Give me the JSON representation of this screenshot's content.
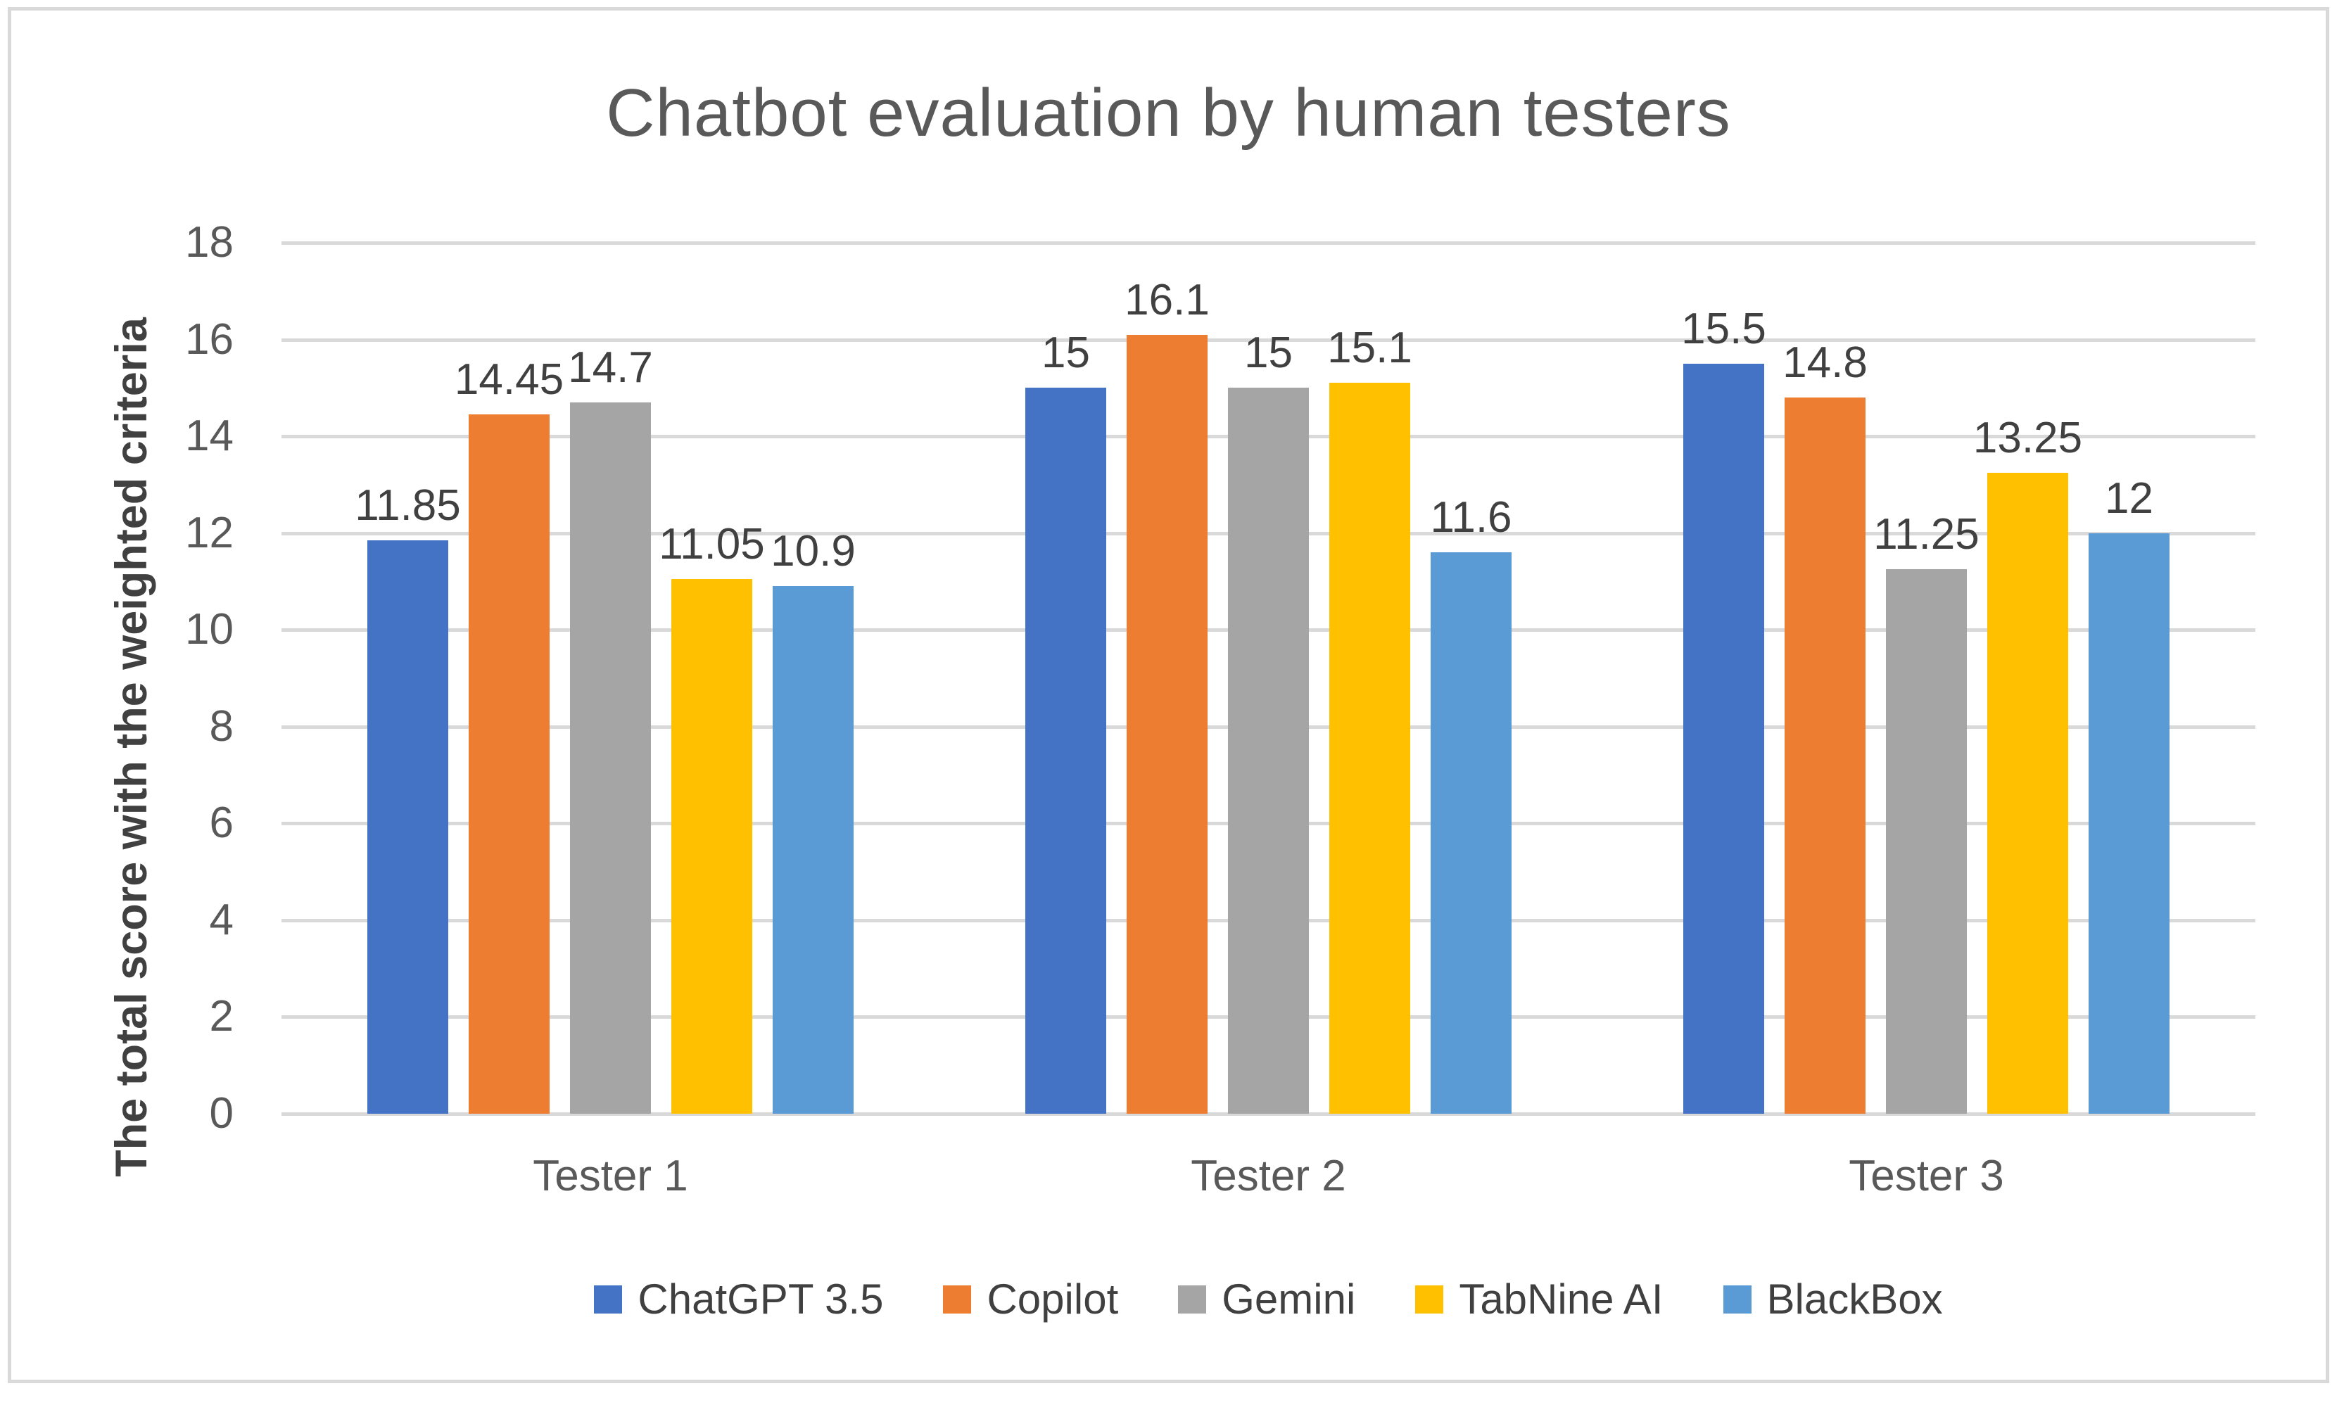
{
  "title": "Chatbot evaluation by human testers",
  "y_axis": {
    "title": "The total score with the weighted criteria",
    "ticks": [
      18,
      16,
      14,
      12,
      10,
      8,
      6,
      4,
      2,
      0
    ]
  },
  "style_colors": {
    "title_text": "#595959",
    "axis_tick_text": "#595959",
    "data_label_text": "#404040",
    "gridline": "#D9D9D9",
    "figure_border": "#D9D9D9"
  },
  "chart_data": {
    "type": "bar",
    "title": "Chatbot evaluation by human testers",
    "xlabel": "",
    "ylabel": "The total score with the weighted criteria",
    "categories": [
      "Tester 1",
      "Tester 2",
      "Tester 3"
    ],
    "series": [
      {
        "name": "ChatGPT 3.5",
        "color": "#4472C4",
        "values": [
          11.85,
          15,
          15.5
        ]
      },
      {
        "name": "Copilot",
        "color": "#ED7D31",
        "values": [
          14.45,
          16.1,
          14.8
        ]
      },
      {
        "name": "Gemini",
        "color": "#A5A5A5",
        "values": [
          14.7,
          15,
          11.25
        ]
      },
      {
        "name": "TabNine AI",
        "color": "#FFC000",
        "values": [
          11.05,
          15.1,
          13.25
        ]
      },
      {
        "name": "BlackBox",
        "color": "#5B9BD5",
        "values": [
          10.9,
          11.6,
          12
        ]
      }
    ],
    "ylim": [
      0,
      18
    ],
    "ytick_step": 2,
    "grid": true,
    "data_labels": true,
    "legend_position": "bottom"
  }
}
